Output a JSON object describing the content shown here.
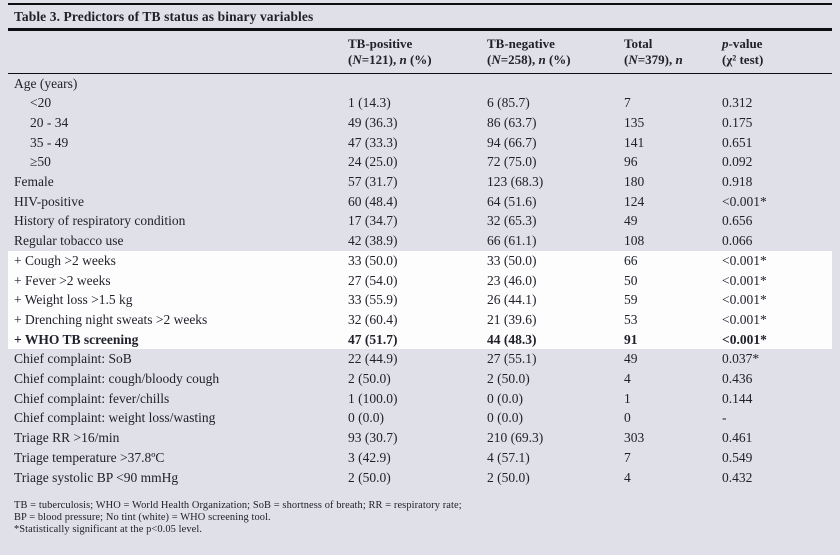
{
  "page": {
    "background_color": "#e0e1e8",
    "highlight_color": "#fdfdfd",
    "text_color": "#20212b"
  },
  "table": {
    "title": "Table 3. Predictors of TB status as binary variables",
    "columns": [
      {
        "id": "label",
        "line1": [],
        "line2": []
      },
      {
        "id": "tb-positive",
        "line1": [
          {
            "t": "TB-positive"
          }
        ],
        "line2": [
          {
            "t": "("
          },
          {
            "t": "N",
            "i": true
          },
          {
            "t": "=121), "
          },
          {
            "t": "n",
            "i": true
          },
          {
            "t": " (%)"
          }
        ]
      },
      {
        "id": "tb-negative",
        "line1": [
          {
            "t": "TB-negative"
          }
        ],
        "line2": [
          {
            "t": "("
          },
          {
            "t": "N",
            "i": true
          },
          {
            "t": "=258), "
          },
          {
            "t": "n",
            "i": true
          },
          {
            "t": " (%)"
          }
        ]
      },
      {
        "id": "total",
        "line1": [
          {
            "t": "Total"
          }
        ],
        "line2": [
          {
            "t": "("
          },
          {
            "t": "N",
            "i": true
          },
          {
            "t": "=379), "
          },
          {
            "t": "n",
            "i": true
          }
        ]
      },
      {
        "id": "p-value",
        "line1": [
          {
            "t": "p",
            "i": true
          },
          {
            "t": "-value"
          }
        ],
        "line2": [
          {
            "t": "(χ² test)"
          }
        ]
      }
    ],
    "rows": [
      {
        "label": "Age (years)",
        "indent": false,
        "highlight": false,
        "bold": false,
        "values": [
          "",
          "",
          "",
          ""
        ]
      },
      {
        "label": "<20",
        "indent": true,
        "highlight": false,
        "bold": false,
        "values": [
          "1 (14.3)",
          "6 (85.7)",
          "7",
          "0.312"
        ]
      },
      {
        "label": "20 - 34",
        "indent": true,
        "highlight": false,
        "bold": false,
        "values": [
          "49 (36.3)",
          "86 (63.7)",
          "135",
          "0.175"
        ]
      },
      {
        "label": "35 - 49",
        "indent": true,
        "highlight": false,
        "bold": false,
        "values": [
          "47 (33.3)",
          "94 (66.7)",
          "141",
          "0.651"
        ]
      },
      {
        "label": "≥50",
        "indent": true,
        "highlight": false,
        "bold": false,
        "values": [
          "24 (25.0)",
          "72 (75.0)",
          "96",
          "0.092"
        ]
      },
      {
        "label": "Female",
        "indent": false,
        "highlight": false,
        "bold": false,
        "values": [
          "57 (31.7)",
          "123 (68.3)",
          "180",
          "0.918"
        ]
      },
      {
        "label": "HIV-positive",
        "indent": false,
        "highlight": false,
        "bold": false,
        "values": [
          "60 (48.4)",
          "64 (51.6)",
          "124",
          "<0.001*"
        ]
      },
      {
        "label": "History of respiratory condition",
        "indent": false,
        "highlight": false,
        "bold": false,
        "values": [
          "17 (34.7)",
          "32 (65.3)",
          "49",
          "0.656"
        ]
      },
      {
        "label": "Regular tobacco use",
        "indent": false,
        "highlight": false,
        "bold": false,
        "values": [
          "42 (38.9)",
          "66 (61.1)",
          "108",
          "0.066"
        ]
      },
      {
        "label": "+ Cough >2 weeks",
        "indent": false,
        "highlight": true,
        "bold": false,
        "values": [
          "33 (50.0)",
          "33 (50.0)",
          "66",
          "<0.001*"
        ]
      },
      {
        "label": "+ Fever >2 weeks",
        "indent": false,
        "highlight": true,
        "bold": false,
        "values": [
          "27 (54.0)",
          "23 (46.0)",
          "50",
          "<0.001*"
        ]
      },
      {
        "label": "+ Weight loss >1.5 kg",
        "indent": false,
        "highlight": true,
        "bold": false,
        "values": [
          "33 (55.9)",
          "26 (44.1)",
          "59",
          "<0.001*"
        ]
      },
      {
        "label": "+ Drenching night sweats >2 weeks",
        "indent": false,
        "highlight": true,
        "bold": false,
        "values": [
          "32 (60.4)",
          "21 (39.6)",
          "53",
          "<0.001*"
        ]
      },
      {
        "label": "+ WHO TB screening",
        "indent": false,
        "highlight": true,
        "bold": true,
        "values": [
          "47 (51.7)",
          "44 (48.3)",
          "91",
          "<0.001*"
        ]
      },
      {
        "label": "Chief complaint: SoB",
        "indent": false,
        "highlight": false,
        "bold": false,
        "values": [
          "22 (44.9)",
          "27 (55.1)",
          "49",
          "0.037*"
        ]
      },
      {
        "label": "Chief complaint: cough/bloody cough",
        "indent": false,
        "highlight": false,
        "bold": false,
        "values": [
          "2 (50.0)",
          "2 (50.0)",
          "4",
          "0.436"
        ]
      },
      {
        "label": "Chief complaint: fever/chills",
        "indent": false,
        "highlight": false,
        "bold": false,
        "values": [
          "1 (100.0)",
          "0 (0.0)",
          "1",
          "0.144"
        ]
      },
      {
        "label": "Chief complaint: weight loss/wasting",
        "indent": false,
        "highlight": false,
        "bold": false,
        "values": [
          "0 (0.0)",
          "0 (0.0)",
          "0",
          "-"
        ]
      },
      {
        "label": "Triage RR >16/min",
        "indent": false,
        "highlight": false,
        "bold": false,
        "values": [
          "93 (30.7)",
          "210 (69.3)",
          "303",
          "0.461"
        ]
      },
      {
        "label": "Triage temperature >37.8ºC",
        "indent": false,
        "highlight": false,
        "bold": false,
        "values": [
          "3 (42.9)",
          "4 (57.1)",
          "7",
          "0.549"
        ]
      },
      {
        "label": "Triage systolic BP <90 mmHg",
        "indent": false,
        "highlight": false,
        "bold": false,
        "values": [
          "2 (50.0)",
          "2 (50.0)",
          "4",
          "0.432"
        ]
      }
    ],
    "footnotes": [
      "TB = tuberculosis; WHO = World Health Organization; SoB = shortness of breath; RR = respiratory rate;",
      "BP = blood pressure; No tint (white) = WHO screening tool.",
      "*Statistically significant at the p<0.05 level."
    ]
  }
}
